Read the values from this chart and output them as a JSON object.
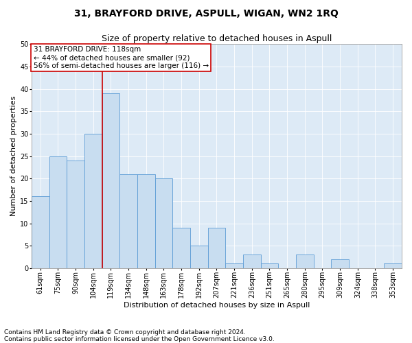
{
  "title": "31, BRAYFORD DRIVE, ASPULL, WIGAN, WN2 1RQ",
  "subtitle": "Size of property relative to detached houses in Aspull",
  "xlabel": "Distribution of detached houses by size in Aspull",
  "ylabel": "Number of detached properties",
  "categories": [
    "61sqm",
    "75sqm",
    "90sqm",
    "104sqm",
    "119sqm",
    "134sqm",
    "148sqm",
    "163sqm",
    "178sqm",
    "192sqm",
    "207sqm",
    "221sqm",
    "236sqm",
    "251sqm",
    "265sqm",
    "280sqm",
    "295sqm",
    "309sqm",
    "324sqm",
    "338sqm",
    "353sqm"
  ],
  "values": [
    16,
    25,
    24,
    30,
    39,
    21,
    21,
    20,
    9,
    5,
    9,
    1,
    3,
    1,
    0,
    3,
    0,
    2,
    0,
    0,
    1
  ],
  "bar_color": "#c8ddf0",
  "bar_edge_color": "#5b9bd5",
  "reference_line_color": "#cc0000",
  "reference_line_index": 4,
  "annotation_title": "31 BRAYFORD DRIVE: 118sqm",
  "annotation_line1": "← 44% of detached houses are smaller (92)",
  "annotation_line2": "56% of semi-detached houses are larger (116) →",
  "annotation_box_color": "#cc0000",
  "ylim": [
    0,
    50
  ],
  "yticks": [
    0,
    5,
    10,
    15,
    20,
    25,
    30,
    35,
    40,
    45,
    50
  ],
  "footnote1": "Contains HM Land Registry data © Crown copyright and database right 2024.",
  "footnote2": "Contains public sector information licensed under the Open Government Licence v3.0.",
  "background_color": "#ddeaf6",
  "bar_width": 1.0,
  "title_fontsize": 10,
  "subtitle_fontsize": 9,
  "axis_label_fontsize": 8,
  "ylabel_fontsize": 8,
  "tick_fontsize": 7,
  "annotation_fontsize": 7.5,
  "footnote_fontsize": 6.5
}
